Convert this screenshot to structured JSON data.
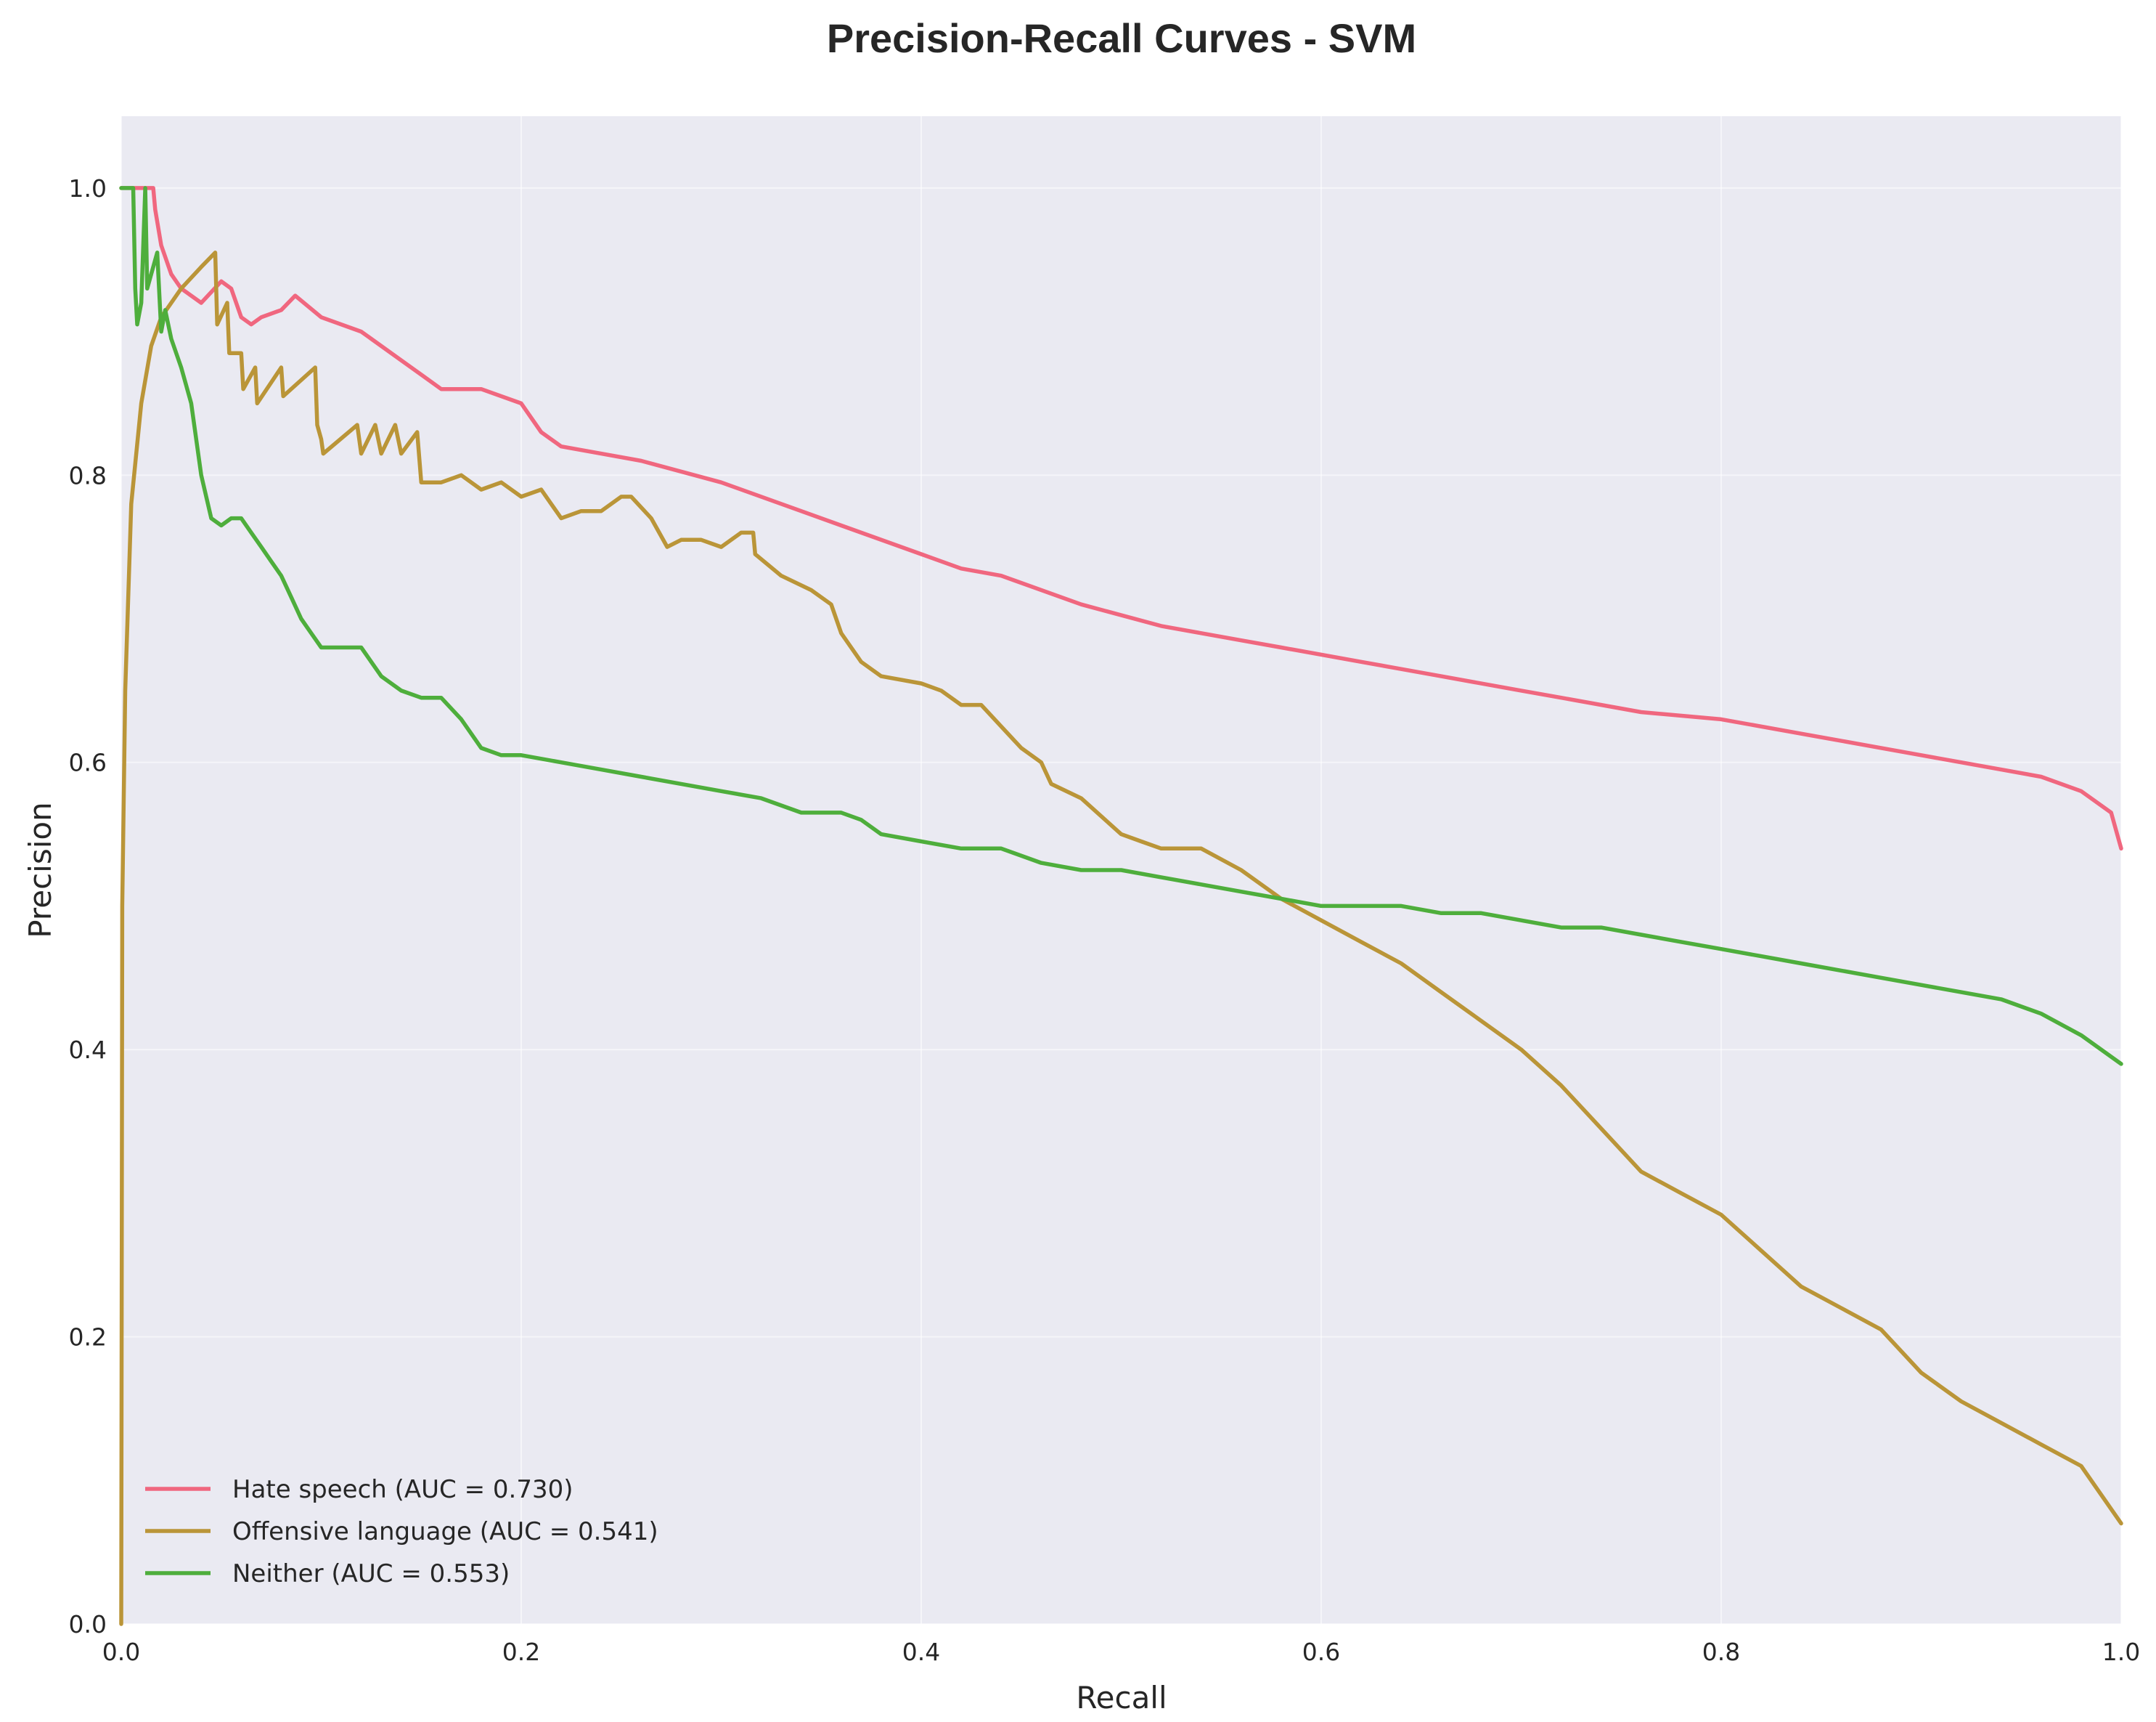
{
  "chart_data": {
    "type": "line",
    "title": "Precision-Recall Curves - SVM",
    "xlabel": "Recall",
    "ylabel": "Precision",
    "xlim": [
      0,
      1
    ],
    "ylim": [
      0,
      1.05
    ],
    "xticks": [
      "0.0",
      "0.2",
      "0.4",
      "0.6",
      "0.8",
      "1.0"
    ],
    "yticks": [
      "0.0",
      "0.2",
      "0.4",
      "0.6",
      "0.8",
      "1.0"
    ],
    "grid": true,
    "legend_position": "lower-left",
    "background_color": "#eaeaf2",
    "series": [
      {
        "name": "Hate speech (AUC = 0.730)",
        "color": "#f0677f",
        "x": [
          0.0,
          0.016,
          0.017,
          0.02,
          0.025,
          0.03,
          0.035,
          0.04,
          0.05,
          0.055,
          0.06,
          0.065,
          0.07,
          0.08,
          0.087,
          0.1,
          0.12,
          0.14,
          0.15,
          0.16,
          0.18,
          0.2,
          0.21,
          0.22,
          0.24,
          0.26,
          0.3,
          0.34,
          0.36,
          0.4,
          0.42,
          0.44,
          0.48,
          0.52,
          0.54,
          0.56,
          0.58,
          0.62,
          0.64,
          0.66,
          0.7,
          0.72,
          0.76,
          0.8,
          0.84,
          0.88,
          0.9,
          0.92,
          0.94,
          0.96,
          0.98,
          0.995,
          1.0
        ],
        "y": [
          1.0,
          1.0,
          0.985,
          0.96,
          0.94,
          0.93,
          0.925,
          0.92,
          0.935,
          0.93,
          0.91,
          0.905,
          0.91,
          0.915,
          0.925,
          0.91,
          0.9,
          0.88,
          0.87,
          0.86,
          0.86,
          0.85,
          0.83,
          0.82,
          0.815,
          0.81,
          0.795,
          0.775,
          0.765,
          0.745,
          0.735,
          0.73,
          0.71,
          0.695,
          0.69,
          0.685,
          0.68,
          0.67,
          0.665,
          0.66,
          0.65,
          0.645,
          0.635,
          0.63,
          0.62,
          0.61,
          0.605,
          0.6,
          0.595,
          0.59,
          0.58,
          0.565,
          0.54
        ]
      },
      {
        "name": "Offensive language (AUC = 0.541)",
        "color": "#ba9538",
        "x": [
          0.0,
          0.0005,
          0.002,
          0.005,
          0.01,
          0.015,
          0.02,
          0.03,
          0.04,
          0.047,
          0.048,
          0.053,
          0.054,
          0.06,
          0.061,
          0.067,
          0.068,
          0.08,
          0.081,
          0.097,
          0.098,
          0.1,
          0.101,
          0.118,
          0.12,
          0.127,
          0.13,
          0.137,
          0.14,
          0.148,
          0.15,
          0.16,
          0.17,
          0.18,
          0.19,
          0.2,
          0.21,
          0.22,
          0.23,
          0.235,
          0.24,
          0.25,
          0.255,
          0.265,
          0.273,
          0.28,
          0.29,
          0.3,
          0.31,
          0.316,
          0.317,
          0.33,
          0.345,
          0.355,
          0.36,
          0.37,
          0.38,
          0.4,
          0.41,
          0.42,
          0.43,
          0.44,
          0.45,
          0.46,
          0.465,
          0.48,
          0.5,
          0.51,
          0.52,
          0.54,
          0.56,
          0.58,
          0.6,
          0.62,
          0.64,
          0.66,
          0.68,
          0.7,
          0.72,
          0.74,
          0.76,
          0.78,
          0.8,
          0.82,
          0.84,
          0.86,
          0.88,
          0.9,
          0.92,
          0.94,
          0.96,
          0.98,
          1.0
        ],
        "y": [
          0.0,
          0.5,
          0.65,
          0.78,
          0.85,
          0.89,
          0.91,
          0.93,
          0.945,
          0.955,
          0.905,
          0.92,
          0.885,
          0.885,
          0.86,
          0.875,
          0.85,
          0.875,
          0.855,
          0.875,
          0.835,
          0.825,
          0.815,
          0.835,
          0.815,
          0.835,
          0.815,
          0.835,
          0.815,
          0.83,
          0.795,
          0.795,
          0.8,
          0.79,
          0.795,
          0.785,
          0.79,
          0.77,
          0.775,
          0.775,
          0.775,
          0.785,
          0.785,
          0.77,
          0.75,
          0.755,
          0.755,
          0.75,
          0.76,
          0.76,
          0.745,
          0.73,
          0.72,
          0.71,
          0.69,
          0.67,
          0.66,
          0.655,
          0.65,
          0.64,
          0.64,
          0.625,
          0.61,
          0.6,
          0.585,
          0.575,
          0.55,
          0.545,
          0.54,
          0.54,
          0.525,
          0.505,
          0.49,
          0.475,
          0.46,
          0.44,
          0.42,
          0.4,
          0.375,
          0.345,
          0.315,
          0.3,
          0.285,
          0.26,
          0.235,
          0.22,
          0.205,
          0.175,
          0.155,
          0.14,
          0.125,
          0.11,
          0.07
        ]
      },
      {
        "name": "Neither (AUC = 0.553)",
        "color": "#4eae3c",
        "x": [
          0.0,
          0.006,
          0.007,
          0.008,
          0.01,
          0.012,
          0.013,
          0.015,
          0.018,
          0.02,
          0.022,
          0.025,
          0.03,
          0.035,
          0.04,
          0.045,
          0.05,
          0.055,
          0.06,
          0.065,
          0.07,
          0.075,
          0.08,
          0.085,
          0.09,
          0.095,
          0.1,
          0.11,
          0.12,
          0.13,
          0.14,
          0.15,
          0.16,
          0.17,
          0.18,
          0.19,
          0.2,
          0.22,
          0.24,
          0.26,
          0.28,
          0.3,
          0.32,
          0.34,
          0.36,
          0.37,
          0.38,
          0.4,
          0.42,
          0.44,
          0.46,
          0.48,
          0.5,
          0.52,
          0.54,
          0.56,
          0.58,
          0.6,
          0.62,
          0.64,
          0.66,
          0.68,
          0.7,
          0.72,
          0.74,
          0.76,
          0.78,
          0.8,
          0.82,
          0.84,
          0.86,
          0.88,
          0.9,
          0.92,
          0.94,
          0.96,
          0.98,
          1.0
        ],
        "y": [
          1.0,
          1.0,
          0.93,
          0.905,
          0.92,
          1.0,
          0.93,
          0.94,
          0.955,
          0.9,
          0.915,
          0.895,
          0.875,
          0.85,
          0.8,
          0.77,
          0.765,
          0.77,
          0.77,
          0.76,
          0.75,
          0.74,
          0.73,
          0.715,
          0.7,
          0.69,
          0.68,
          0.68,
          0.68,
          0.66,
          0.65,
          0.645,
          0.645,
          0.63,
          0.61,
          0.605,
          0.605,
          0.6,
          0.595,
          0.59,
          0.585,
          0.58,
          0.575,
          0.565,
          0.565,
          0.56,
          0.55,
          0.545,
          0.54,
          0.54,
          0.53,
          0.525,
          0.525,
          0.52,
          0.515,
          0.51,
          0.505,
          0.5,
          0.5,
          0.5,
          0.495,
          0.495,
          0.49,
          0.485,
          0.485,
          0.48,
          0.475,
          0.47,
          0.465,
          0.46,
          0.455,
          0.45,
          0.445,
          0.44,
          0.435,
          0.425,
          0.41,
          0.39
        ]
      }
    ]
  }
}
